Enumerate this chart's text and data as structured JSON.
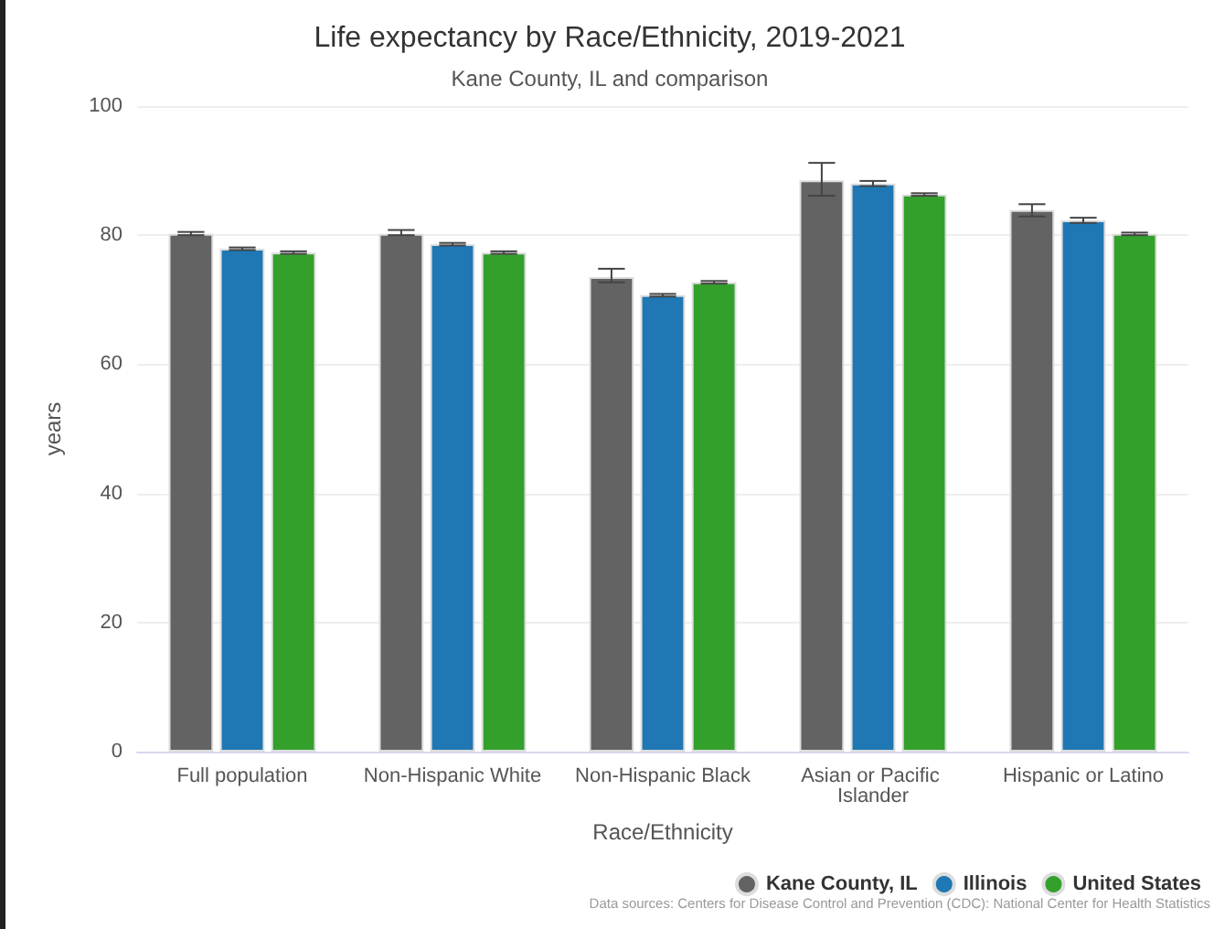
{
  "chart_data": {
    "type": "bar",
    "title": "Life expectancy by Race/Ethnicity, 2019-2021",
    "subtitle": "Kane County, IL and comparison",
    "xlabel": "Race/Ethnicity",
    "ylabel": "years",
    "categories": [
      "Full population",
      "Non-Hispanic White",
      "Non-Hispanic Black",
      "Asian or Pacific Islander",
      "Hispanic or Latino"
    ],
    "series": [
      {
        "name": "Kane County, IL",
        "color": "#636363",
        "values": [
          80.2,
          80.2,
          73.5,
          88.5,
          83.9
        ],
        "errors": [
          [
            80.0,
            80.5
          ],
          [
            80.0,
            80.8
          ],
          [
            72.7,
            74.8
          ],
          [
            86.1,
            91.2
          ],
          [
            82.9,
            84.8
          ]
        ]
      },
      {
        "name": "Illinois",
        "color": "#1f77b4",
        "values": [
          77.9,
          78.6,
          70.7,
          88.0,
          82.3
        ],
        "errors": [
          0.2,
          0.2,
          0.2,
          0.4,
          0.4
        ]
      },
      {
        "name": "United States",
        "color": "#33a02c",
        "values": [
          77.3,
          77.3,
          72.7,
          86.3,
          80.2
        ],
        "errors": [
          0.2,
          0.2,
          0.2,
          0.2,
          0.2
        ]
      }
    ],
    "ylim": [
      0,
      100
    ],
    "yticks": [
      0,
      20,
      40,
      60,
      80,
      100
    ],
    "grid": "y",
    "legend": "bottom right",
    "annotations": [
      "Data sources: Centers for Disease Control and Prevention (CDC): National Center for Health Statistics"
    ]
  }
}
